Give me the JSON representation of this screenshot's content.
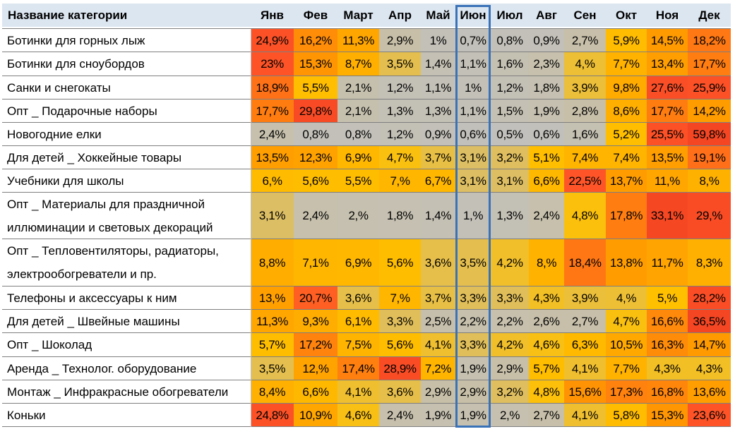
{
  "header": {
    "category_label": "Название категории",
    "months": [
      "Янв",
      "Фев",
      "Март",
      "Апр",
      "Май",
      "Июн",
      "Июл",
      "Авг",
      "Сен",
      "Окт",
      "Ноя",
      "Дек"
    ]
  },
  "highlighted_month": "Июн",
  "colors": {
    "header_bg": "#dce6f1",
    "highlight_border": "#3a72b8",
    "gray_cell": "#c0c0c0",
    "scale": [
      "#ffc000",
      "#ff9900",
      "#ff5a27"
    ]
  },
  "chart_data": {
    "type": "heatmap",
    "columns": [
      "Янв",
      "Фев",
      "Март",
      "Апр",
      "Май",
      "Июн",
      "Июл",
      "Авг",
      "Сен",
      "Окт",
      "Ноя",
      "Дек"
    ],
    "rows": [
      {
        "label": [
          "Ботинки для горных лыж"
        ],
        "values": [
          "24,9%",
          "16,2%",
          "11,3%",
          "2,9%",
          "1%",
          "0,7%",
          "0,8%",
          "0,9%",
          "2,7%",
          "5,9%",
          "14,5%",
          "18,2%"
        ]
      },
      {
        "label": [
          "Ботинки для сноубордов"
        ],
        "values": [
          "23%",
          "15,3%",
          "8,7%",
          "3,5%",
          "1,4%",
          "1,1%",
          "1,6%",
          "2,3%",
          "4,%",
          "7,7%",
          "13,4%",
          "17,7%"
        ]
      },
      {
        "label": [
          "Санки и снегокаты"
        ],
        "values": [
          "18,9%",
          "5,5%",
          "2,1%",
          "1,2%",
          "1,1%",
          "1%",
          "1,2%",
          "1,8%",
          "3,9%",
          "9,8%",
          "27,6%",
          "25,9%"
        ]
      },
      {
        "label": [
          "Опт _ Подарочные наборы"
        ],
        "values": [
          "17,7%",
          "29,8%",
          "2,1%",
          "1,3%",
          "1,3%",
          "1,1%",
          "1,5%",
          "1,9%",
          "2,8%",
          "8,6%",
          "17,7%",
          "14,2%"
        ]
      },
      {
        "label": [
          "Новогодние елки"
        ],
        "values": [
          "2,4%",
          "0,8%",
          "0,8%",
          "1,2%",
          "0,9%",
          "0,6%",
          "0,5%",
          "0,6%",
          "1,6%",
          "5,2%",
          "25,5%",
          "59,8%"
        ]
      },
      {
        "label": [
          "Для детей _ Хоккейные товары"
        ],
        "values": [
          "13,5%",
          "12,3%",
          "6,9%",
          "4,7%",
          "3,7%",
          "3,1%",
          "3,2%",
          "5,1%",
          "7,4%",
          "7,4%",
          "13,5%",
          "19,1%"
        ]
      },
      {
        "label": [
          "Учебники для школы"
        ],
        "values": [
          "6,%",
          "5,6%",
          "5,5%",
          "7,%",
          "6,7%",
          "3,1%",
          "3,1%",
          "6,6%",
          "22,5%",
          "13,7%",
          "11,%",
          "8,%"
        ]
      },
      {
        "label": [
          "Опт _ Материалы для праздничной",
          "иллюминации и световых декораций"
        ],
        "values": [
          "3,1%",
          "2,4%",
          "2,%",
          "1,8%",
          "1,4%",
          "1,%",
          "1,3%",
          "2,4%",
          "4,8%",
          "17,8%",
          "33,1%",
          "29,%"
        ]
      },
      {
        "label": [
          "Опт _ Тепловентиляторы, радиаторы,",
          "электрообогреватели и пр."
        ],
        "values": [
          "8,8%",
          "7,1%",
          "6,9%",
          "5,6%",
          "3,6%",
          "3,5%",
          "4,2%",
          "8,%",
          "18,4%",
          "13,8%",
          "11,7%",
          "8,3%"
        ]
      },
      {
        "label": [
          "Телефоны и аксессуары к ним"
        ],
        "values": [
          "13,%",
          "20,7%",
          "3,6%",
          "7,%",
          "3,7%",
          "3,3%",
          "3,3%",
          "4,3%",
          "3,9%",
          "4,%",
          "5,%",
          "28,2%"
        ]
      },
      {
        "label": [
          "Для детей _ Швейные машины"
        ],
        "values": [
          "11,3%",
          "9,3%",
          "6,1%",
          "3,3%",
          "2,5%",
          "2,2%",
          "2,2%",
          "2,6%",
          "2,7%",
          "4,7%",
          "16,6%",
          "36,5%"
        ]
      },
      {
        "label": [
          "Опт _ Шоколад"
        ],
        "values": [
          "5,7%",
          "17,2%",
          "7,5%",
          "5,6%",
          "4,1%",
          "3,3%",
          "4,2%",
          "4,6%",
          "6,3%",
          "10,5%",
          "16,3%",
          "14,7%"
        ]
      },
      {
        "label": [
          "Аренда _ Технолог. оборудование"
        ],
        "values": [
          "3,5%",
          "12,%",
          "17,4%",
          "28,9%",
          "7,2%",
          "1,9%",
          "2,9%",
          "5,7%",
          "4,1%",
          "7,7%",
          "4,3%",
          "4,3%"
        ]
      },
      {
        "label": [
          "Монтаж _ Инфракрасные обогреватели"
        ],
        "values": [
          "8,4%",
          "6,6%",
          "4,1%",
          "3,6%",
          "2,9%",
          "2,9%",
          "3,2%",
          "4,8%",
          "15,6%",
          "17,3%",
          "16,8%",
          "13,6%"
        ]
      },
      {
        "label": [
          "Коньки"
        ],
        "values": [
          "24,8%",
          "10,9%",
          "4,6%",
          "2,4%",
          "1,9%",
          "1,9%",
          "2,%",
          "2,7%",
          "4,1%",
          "5,8%",
          "15,3%",
          "23,6%"
        ]
      }
    ]
  }
}
